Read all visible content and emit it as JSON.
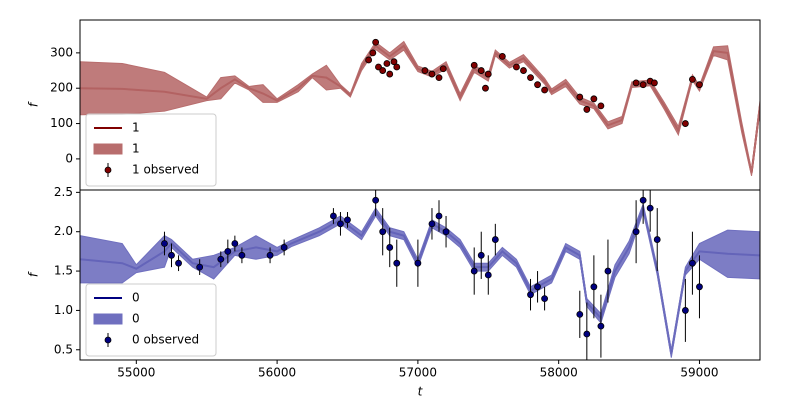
{
  "chart_data": [
    {
      "type": "line",
      "ylabel": "f",
      "xlim": [
        54600,
        59430
      ],
      "ylim": [
        -88,
        393
      ],
      "yticks": [
        0,
        100,
        200,
        300
      ],
      "legend": "lower left",
      "series": [
        {
          "name": "1",
          "kind": "line",
          "color": "#800000",
          "x": [
            54600,
            54900,
            55200,
            55500,
            55600,
            55700,
            55800,
            55900,
            56000,
            56150,
            56250,
            56350,
            56450,
            56520,
            56600,
            56700,
            56800,
            56900,
            57000,
            57100,
            57200,
            57300,
            57400,
            57500,
            57550,
            57650,
            57750,
            57900,
            57950,
            58050,
            58150,
            58250,
            58350,
            58450,
            58520,
            58650,
            58750,
            58850,
            58950,
            59000,
            59100,
            59200,
            59300,
            59370,
            59430
          ],
          "values": [
            200,
            198,
            190,
            170,
            200,
            225,
            200,
            185,
            165,
            200,
            235,
            230,
            205,
            180,
            260,
            320,
            290,
            320,
            255,
            240,
            265,
            175,
            255,
            230,
            300,
            265,
            285,
            220,
            190,
            215,
            165,
            150,
            95,
            110,
            210,
            215,
            150,
            80,
            230,
            200,
            305,
            300,
            90,
            -40,
            150
          ]
        },
        {
          "name": "1",
          "kind": "band",
          "color": "#b86d6d",
          "x": [
            54600,
            54900,
            55200,
            55500,
            55600,
            55700,
            55800,
            55900,
            56000,
            56150,
            56250,
            56350,
            56450,
            56520,
            56600,
            56700,
            56800,
            56900,
            57000,
            57100,
            57200,
            57300,
            57400,
            57500,
            57550,
            57650,
            57750,
            57900,
            57950,
            58050,
            58150,
            58250,
            58350,
            58450,
            58520,
            58650,
            58750,
            58850,
            58950,
            59000,
            59100,
            59200,
            59300,
            59370,
            59430
          ],
          "upper": [
            275,
            270,
            245,
            175,
            230,
            235,
            205,
            210,
            170,
            210,
            240,
            265,
            210,
            185,
            270,
            330,
            300,
            332,
            263,
            248,
            275,
            185,
            265,
            240,
            308,
            273,
            295,
            228,
            198,
            225,
            175,
            158,
            105,
            120,
            218,
            223,
            160,
            92,
            238,
            208,
            317,
            320,
            105,
            -32,
            165
          ],
          "lower": [
            125,
            126,
            135,
            165,
            170,
            215,
            195,
            160,
            160,
            190,
            230,
            195,
            200,
            175,
            250,
            310,
            280,
            308,
            247,
            232,
            255,
            165,
            245,
            220,
            292,
            257,
            275,
            212,
            182,
            205,
            155,
            142,
            85,
            100,
            202,
            207,
            140,
            68,
            222,
            192,
            293,
            280,
            75,
            -48,
            135
          ]
        },
        {
          "name": "1 observed",
          "kind": "errorbar",
          "color": "#800000",
          "x": [
            56650,
            56680,
            56700,
            56720,
            56750,
            56780,
            56800,
            56830,
            56850,
            57050,
            57100,
            57150,
            57180,
            57400,
            57450,
            57480,
            57500,
            57600,
            57700,
            57750,
            57800,
            57850,
            57900,
            58150,
            58200,
            58250,
            58300,
            58550,
            58600,
            58650,
            58680,
            58900,
            58950,
            59000
          ],
          "values": [
            280,
            300,
            330,
            260,
            250,
            270,
            240,
            275,
            260,
            250,
            240,
            230,
            255,
            265,
            250,
            200,
            240,
            290,
            260,
            250,
            230,
            210,
            195,
            175,
            140,
            170,
            150,
            215,
            210,
            220,
            215,
            100,
            225,
            210
          ],
          "errors": [
            8,
            8,
            8,
            8,
            8,
            8,
            8,
            8,
            8,
            8,
            8,
            8,
            8,
            8,
            8,
            8,
            8,
            8,
            8,
            8,
            8,
            8,
            8,
            8,
            8,
            8,
            8,
            8,
            8,
            8,
            8,
            8,
            8,
            8
          ]
        }
      ]
    },
    {
      "type": "line",
      "xlabel": "t",
      "ylabel": "f",
      "xlim": [
        54600,
        59430
      ],
      "ylim": [
        0.37,
        2.53
      ],
      "xticks": [
        55000,
        56000,
        57000,
        58000,
        59000
      ],
      "yticks": [
        0.5,
        {
          "value": 1,
          "label": "1.0"
        },
        1.5,
        {
          "value": 2,
          "label": "2.0"
        },
        2.5
      ],
      "legend": "lower left",
      "series": [
        {
          "name": "0",
          "kind": "line",
          "color": "#000080",
          "x": [
            54600,
            54900,
            55000,
            55200,
            55250,
            55400,
            55550,
            55700,
            55850,
            56000,
            56100,
            56300,
            56450,
            56600,
            56700,
            56800,
            56900,
            57000,
            57100,
            57200,
            57300,
            57400,
            57500,
            57600,
            57700,
            57800,
            57950,
            58050,
            58150,
            58200,
            58300,
            58400,
            58500,
            58600,
            58700,
            58800,
            58900,
            59000,
            59200,
            59430
          ],
          "values": [
            1.65,
            1.6,
            1.53,
            1.75,
            1.85,
            1.6,
            1.55,
            1.75,
            1.8,
            1.75,
            1.85,
            2.0,
            2.15,
            1.95,
            2.25,
            2.0,
            1.95,
            1.6,
            2.1,
            2.0,
            1.85,
            1.55,
            1.55,
            1.75,
            1.6,
            1.25,
            1.4,
            1.8,
            1.7,
            1.1,
            0.9,
            1.5,
            1.8,
            2.3,
            1.5,
            0.45,
            1.5,
            1.75,
            1.72,
            1.7
          ]
        },
        {
          "name": "0",
          "kind": "band",
          "color": "#6f6fbf",
          "x": [
            54600,
            54900,
            55000,
            55200,
            55250,
            55400,
            55550,
            55700,
            55850,
            56000,
            56100,
            56300,
            56450,
            56600,
            56700,
            56800,
            56900,
            57000,
            57100,
            57200,
            57300,
            57400,
            57500,
            57600,
            57700,
            57800,
            57950,
            58050,
            58150,
            58200,
            58300,
            58400,
            58500,
            58600,
            58700,
            58800,
            58900,
            59000,
            59200,
            59430
          ],
          "upper": [
            1.95,
            1.85,
            1.58,
            1.95,
            1.9,
            1.65,
            1.7,
            1.8,
            1.95,
            1.8,
            1.89,
            2.05,
            2.2,
            2.0,
            2.3,
            2.05,
            2.0,
            1.65,
            2.15,
            2.05,
            1.9,
            1.6,
            1.6,
            1.8,
            1.65,
            1.3,
            1.45,
            1.85,
            1.75,
            1.15,
            0.96,
            1.58,
            1.88,
            2.35,
            1.55,
            0.5,
            1.55,
            1.85,
            2.02,
            2.0
          ],
          "lower": [
            1.35,
            1.35,
            1.48,
            1.55,
            1.8,
            1.55,
            1.4,
            1.7,
            1.65,
            1.7,
            1.81,
            1.95,
            2.1,
            1.9,
            2.2,
            1.95,
            1.9,
            1.55,
            2.05,
            1.95,
            1.8,
            1.5,
            1.5,
            1.7,
            1.55,
            1.2,
            1.35,
            1.75,
            1.65,
            1.05,
            0.84,
            1.42,
            1.72,
            2.25,
            1.45,
            0.4,
            1.45,
            1.65,
            1.42,
            1.4
          ]
        },
        {
          "name": "0 observed",
          "kind": "errorbar",
          "color": "#000080",
          "x": [
            55200,
            55250,
            55300,
            55450,
            55600,
            55650,
            55700,
            55750,
            55950,
            56050,
            56400,
            56450,
            56500,
            56700,
            56750,
            56800,
            56850,
            57000,
            57100,
            57150,
            57200,
            57400,
            57450,
            57500,
            57550,
            57800,
            57850,
            57900,
            58150,
            58200,
            58250,
            58300,
            58350,
            58550,
            58600,
            58650,
            58700,
            58900,
            58950,
            59000
          ],
          "values": [
            1.85,
            1.7,
            1.6,
            1.55,
            1.65,
            1.75,
            1.85,
            1.7,
            1.7,
            1.8,
            2.2,
            2.1,
            2.15,
            2.4,
            2.0,
            1.8,
            1.6,
            1.6,
            2.1,
            2.2,
            2.0,
            1.5,
            1.7,
            1.45,
            1.9,
            1.2,
            1.3,
            1.15,
            0.95,
            0.7,
            1.3,
            0.8,
            1.5,
            2.0,
            2.4,
            2.3,
            1.9,
            1.0,
            1.6,
            1.3
          ],
          "errors": [
            0.15,
            0.15,
            0.1,
            0.1,
            0.1,
            0.15,
            0.1,
            0.1,
            0.1,
            0.1,
            0.1,
            0.15,
            0.1,
            0.2,
            0.3,
            0.25,
            0.3,
            0.3,
            0.2,
            0.2,
            0.2,
            0.3,
            0.3,
            0.25,
            0.2,
            0.2,
            0.2,
            0.15,
            0.3,
            0.4,
            0.4,
            0.4,
            0.4,
            0.4,
            0.3,
            0.3,
            0.4,
            0.4,
            0.4,
            0.4
          ]
        }
      ]
    }
  ]
}
